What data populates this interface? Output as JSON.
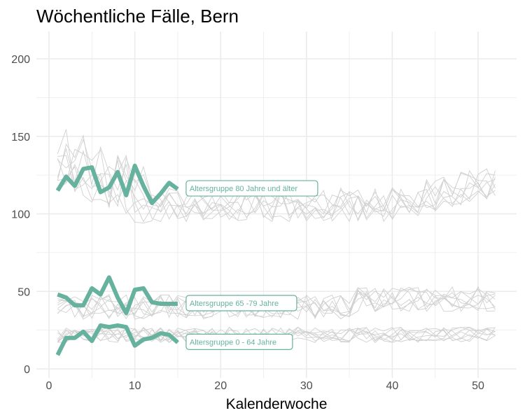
{
  "chart_data": {
    "type": "line",
    "title": "Wöchentliche Fälle, Bern",
    "xlabel": "Kalenderwoche",
    "ylabel": "",
    "xlim": [
      0,
      52
    ],
    "ylim": [
      0,
      210
    ],
    "x_ticks": [
      0,
      10,
      20,
      30,
      40,
      50
    ],
    "y_ticks": [
      0,
      50,
      100,
      150,
      200
    ],
    "grid": true,
    "highlight_color": "#66b29f",
    "background_line_color": "#d0d0d0",
    "series": [
      {
        "name": "Altersgruppe 80 Jahre und älter",
        "x": [
          1,
          2,
          3,
          4,
          5,
          6,
          7,
          8,
          9,
          10,
          11,
          12,
          13,
          14,
          15
        ],
        "values": [
          115,
          124,
          118,
          129,
          130,
          114,
          117,
          127,
          112,
          131,
          118,
          107,
          113,
          120,
          116
        ]
      },
      {
        "name": "Altersgruppe 65 -79 Jahre",
        "x": [
          1,
          2,
          3,
          4,
          5,
          6,
          7,
          8,
          9,
          10,
          11,
          12,
          13,
          14,
          15
        ],
        "values": [
          48,
          46,
          41,
          41,
          52,
          48,
          59,
          46,
          36,
          51,
          52,
          43,
          42,
          42,
          42
        ]
      },
      {
        "name": "Altersgruppe 0 - 64 Jahre",
        "x": [
          1,
          2,
          3,
          4,
          5,
          6,
          7,
          8,
          9,
          10,
          11,
          12,
          13,
          14,
          15
        ],
        "values": [
          9,
          20,
          20,
          24,
          18,
          28,
          27,
          28,
          27,
          15,
          19,
          20,
          23,
          22,
          17
        ]
      }
    ],
    "background_years": 8
  }
}
